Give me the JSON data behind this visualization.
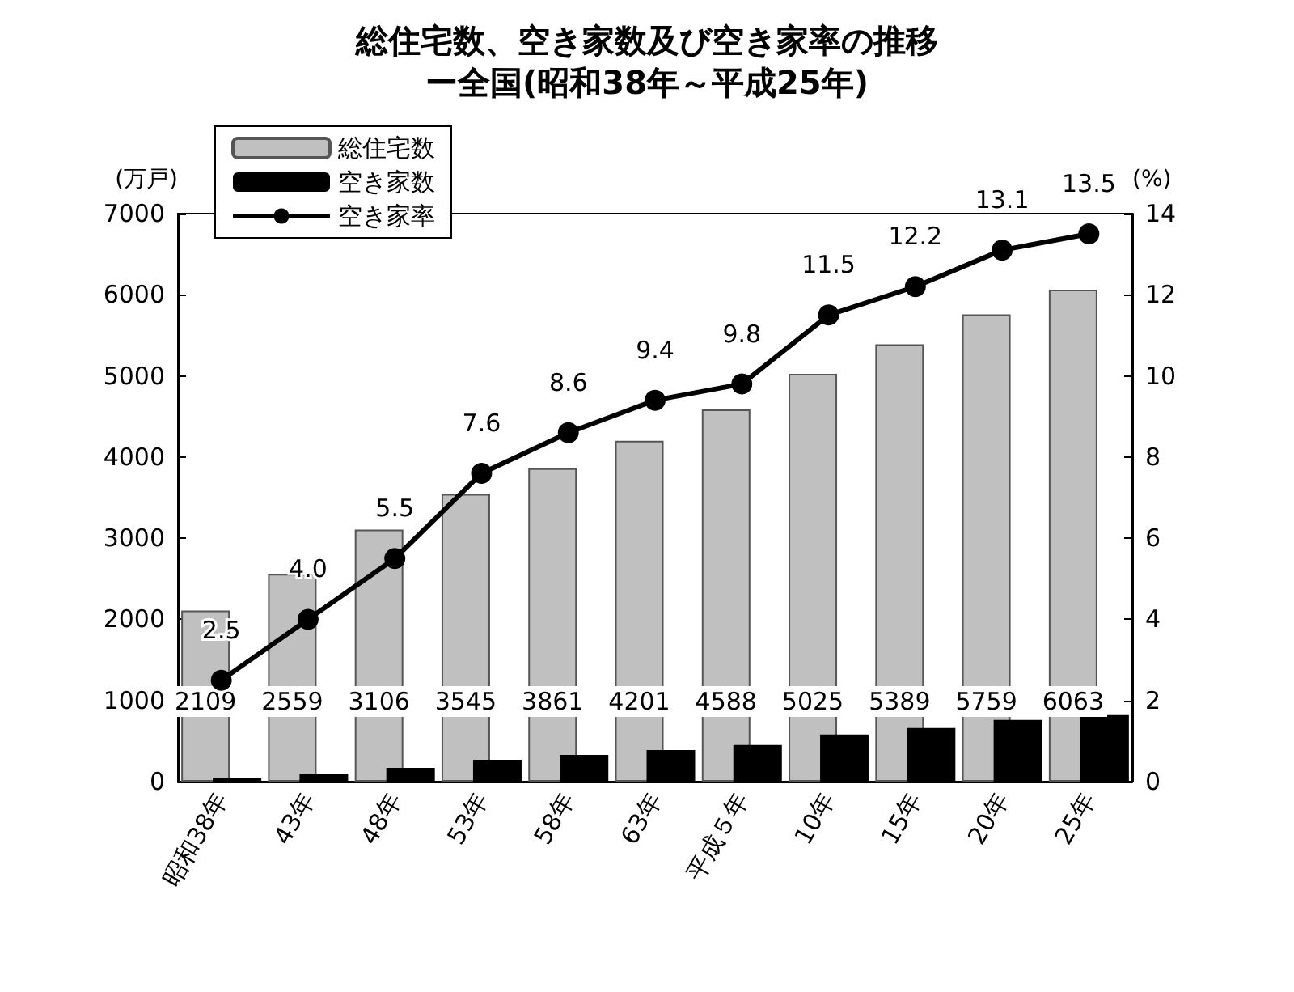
{
  "chart_data": {
    "type": "bar",
    "title": "総住宅数、空き家数及び空き家率の推移",
    "subtitle": "ー全国(昭和38年～平成25年)",
    "ylabel": "(万戸)",
    "y2label": "(%)",
    "categories": [
      "昭和38年",
      "43年",
      "48年",
      "53年",
      "58年",
      "63年",
      "平成５年",
      "10年",
      "15年",
      "20年",
      "25年"
    ],
    "series": [
      {
        "name": "総住宅数",
        "color": "#c0c0c0",
        "values": [
          2109,
          2559,
          3106,
          3545,
          3861,
          4201,
          4588,
          5025,
          5389,
          5759,
          6063
        ],
        "value_labels": [
          "2109",
          "2559",
          "3106",
          "3545",
          "3861",
          "4201",
          "4588",
          "5025",
          "5389",
          "5759",
          "6063"
        ]
      },
      {
        "name": "空き家数",
        "color": "#000000",
        "values": [
          50,
          100,
          170,
          270,
          330,
          390,
          450,
          580,
          660,
          760,
          820
        ]
      },
      {
        "name": "空き家率",
        "type": "line",
        "axis": "y2",
        "color": "#000000",
        "marker": "circle",
        "values": [
          2.5,
          4.0,
          5.5,
          7.6,
          8.6,
          9.4,
          9.8,
          11.5,
          12.2,
          13.1,
          13.5
        ],
        "value_labels": [
          "2.5",
          "4.0",
          "5.5",
          "7.6",
          "8.6",
          "9.4",
          "9.8",
          "11.5",
          "12.2",
          "13.1",
          "13.5"
        ]
      }
    ],
    "ylim": [
      0,
      7000
    ],
    "yticks": [
      0,
      1000,
      2000,
      3000,
      4000,
      5000,
      6000,
      7000
    ],
    "y2lim": [
      0,
      14
    ],
    "y2ticks": [
      0,
      2,
      4,
      6,
      8,
      10,
      12,
      14
    ],
    "legend": "top left",
    "grid": false
  }
}
